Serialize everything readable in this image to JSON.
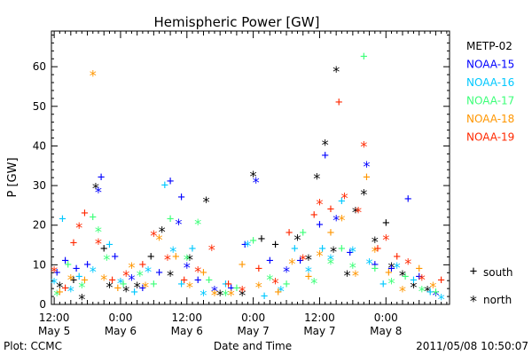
{
  "chart_data": {
    "type": "scatter",
    "title": "Hemispheric Power [GW]",
    "xlabel": "Date and Time",
    "ylabel": "P [GW]",
    "ylim": [
      0,
      69
    ],
    "xlim": [
      -0.5,
      71.5
    ],
    "y_ticks": [
      0,
      10,
      20,
      30,
      40,
      50,
      60
    ],
    "x_tick_labels": [
      {
        "x": 0,
        "time": "12:00",
        "date": "May 5"
      },
      {
        "x": 12,
        "time": "0:00",
        "date": "May 6"
      },
      {
        "x": 24,
        "time": "12:00",
        "date": "May 6"
      },
      {
        "x": 36,
        "time": "0:00",
        "date": "May 7"
      },
      {
        "x": 48,
        "time": "12:00",
        "date": "May 7"
      },
      {
        "x": 60,
        "time": "0:00",
        "date": "May 8"
      }
    ],
    "x_units_note": "hours after 2011-05-05 12:00 UT",
    "grid": false,
    "legend_position": "right",
    "marker_legend": {
      "south": "south",
      "north": "north"
    },
    "series": [
      {
        "name": "METP-02",
        "color": "#000000",
        "points": [
          [
            1,
            5,
            "n"
          ],
          [
            3.5,
            6,
            "s"
          ],
          [
            5,
            2,
            "n"
          ],
          [
            7.5,
            30,
            "n"
          ],
          [
            9,
            14,
            "s"
          ],
          [
            10,
            5,
            "n"
          ],
          [
            13,
            4,
            "n"
          ],
          [
            15,
            5,
            "n"
          ],
          [
            17.5,
            12,
            "s"
          ],
          [
            19.5,
            19,
            "n"
          ],
          [
            21,
            8,
            "n"
          ],
          [
            24.5,
            12,
            "n"
          ],
          [
            27.5,
            26.5,
            "n"
          ],
          [
            30,
            3,
            "n"
          ],
          [
            34,
            3,
            "n"
          ],
          [
            36,
            33,
            "n"
          ],
          [
            37.5,
            16.5,
            "s"
          ],
          [
            40,
            15,
            "s"
          ],
          [
            44,
            17,
            "n"
          ],
          [
            46,
            12,
            "n"
          ],
          [
            47.5,
            32.5,
            "n"
          ],
          [
            49,
            41,
            "n"
          ],
          [
            50.5,
            14,
            "n"
          ],
          [
            51,
            59.5,
            "n"
          ],
          [
            53,
            8,
            "n"
          ],
          [
            54.5,
            24,
            "n"
          ],
          [
            56,
            28.5,
            "n"
          ],
          [
            58,
            16.5,
            "n"
          ],
          [
            60,
            20.5,
            "s"
          ],
          [
            61,
            10,
            "n"
          ],
          [
            63,
            8,
            "n"
          ],
          [
            65,
            5,
            "n"
          ],
          [
            67.5,
            4,
            "n"
          ]
        ]
      },
      {
        "name": "NOAA-15",
        "color": "#0000ff",
        "points": [
          [
            0.5,
            8,
            "s"
          ],
          [
            2,
            11,
            "s"
          ],
          [
            4,
            9,
            "s"
          ],
          [
            6,
            10,
            "s"
          ],
          [
            8,
            29,
            "n"
          ],
          [
            8.5,
            32,
            "s"
          ],
          [
            11,
            12,
            "s"
          ],
          [
            14,
            7,
            "n"
          ],
          [
            16,
            4,
            "s"
          ],
          [
            19,
            8,
            "s"
          ],
          [
            21,
            31,
            "s"
          ],
          [
            22.5,
            21,
            "n"
          ],
          [
            23,
            27,
            "s"
          ],
          [
            24,
            10,
            "n"
          ],
          [
            26,
            6,
            "s"
          ],
          [
            29,
            4,
            "n"
          ],
          [
            32,
            4,
            "s"
          ],
          [
            34.5,
            15,
            "s"
          ],
          [
            36.5,
            31.5,
            "n"
          ],
          [
            39,
            11,
            "s"
          ],
          [
            42,
            9,
            "n"
          ],
          [
            44.5,
            11,
            "s"
          ],
          [
            48,
            20,
            "s"
          ],
          [
            49,
            37.5,
            "s"
          ],
          [
            51,
            22,
            "n"
          ],
          [
            53.5,
            13,
            "s"
          ],
          [
            56.5,
            35.5,
            "n"
          ],
          [
            58,
            10,
            "s"
          ],
          [
            61,
            9,
            "s"
          ],
          [
            64,
            26.5,
            "s"
          ],
          [
            66,
            7,
            "s"
          ],
          [
            69,
            3,
            "n"
          ]
        ]
      },
      {
        "name": "NOAA-16",
        "color": "#00c8ff",
        "points": [
          [
            0,
            6,
            "n"
          ],
          [
            1.5,
            21.5,
            "s"
          ],
          [
            3,
            4,
            "n"
          ],
          [
            4.5,
            7,
            "s"
          ],
          [
            7,
            9,
            "n"
          ],
          [
            10,
            15,
            "s"
          ],
          [
            12,
            6,
            "n"
          ],
          [
            14.5,
            3,
            "s"
          ],
          [
            17,
            9,
            "n"
          ],
          [
            20,
            30,
            "s"
          ],
          [
            21.5,
            14,
            "n"
          ],
          [
            23,
            5,
            "s"
          ],
          [
            25,
            14,
            "s"
          ],
          [
            27,
            3,
            "n"
          ],
          [
            31,
            5,
            "s"
          ],
          [
            35,
            15.5,
            "n"
          ],
          [
            38,
            2,
            "s"
          ],
          [
            41,
            4,
            "n"
          ],
          [
            43.5,
            14,
            "s"
          ],
          [
            46,
            9,
            "n"
          ],
          [
            48.5,
            14,
            "s"
          ],
          [
            50,
            12,
            "n"
          ],
          [
            52,
            26,
            "s"
          ],
          [
            54,
            14,
            "n"
          ],
          [
            57,
            11,
            "n"
          ],
          [
            59.5,
            5,
            "s"
          ],
          [
            62,
            10,
            "n"
          ],
          [
            65,
            6,
            "s"
          ],
          [
            68,
            3,
            "s"
          ],
          [
            70,
            2,
            "n"
          ]
        ]
      },
      {
        "name": "NOAA-17",
        "color": "#3cff78",
        "points": [
          [
            0.5,
            3,
            "n"
          ],
          [
            2.5,
            10,
            "s"
          ],
          [
            5,
            5,
            "n"
          ],
          [
            7,
            22,
            "s"
          ],
          [
            8,
            19,
            "n"
          ],
          [
            9.5,
            12,
            "n"
          ],
          [
            12.5,
            5,
            "s"
          ],
          [
            15.5,
            8,
            "n"
          ],
          [
            18,
            5,
            "s"
          ],
          [
            21,
            21.5,
            "s"
          ],
          [
            24,
            12,
            "n"
          ],
          [
            26,
            21,
            "n"
          ],
          [
            28,
            6,
            "s"
          ],
          [
            31,
            3,
            "n"
          ],
          [
            33,
            4,
            "s"
          ],
          [
            36,
            16,
            "s"
          ],
          [
            39,
            7,
            "n"
          ],
          [
            42,
            5,
            "s"
          ],
          [
            45,
            18,
            "s"
          ],
          [
            47,
            6,
            "n"
          ],
          [
            50,
            11,
            "n"
          ],
          [
            52,
            14,
            "s"
          ],
          [
            54,
            10,
            "n"
          ],
          [
            56,
            62.5,
            "s"
          ],
          [
            58,
            9,
            "s"
          ],
          [
            61,
            6,
            "n"
          ],
          [
            63.5,
            7,
            "s"
          ],
          [
            66.5,
            4,
            "n"
          ],
          [
            69,
            3,
            "s"
          ]
        ]
      },
      {
        "name": "NOAA-18",
        "color": "#ff9600",
        "points": [
          [
            1,
            3,
            "s"
          ],
          [
            3,
            7,
            "n"
          ],
          [
            5.5,
            6,
            "s"
          ],
          [
            7,
            58.5,
            "n"
          ],
          [
            9,
            7,
            "n"
          ],
          [
            11.5,
            4,
            "s"
          ],
          [
            14,
            10,
            "n"
          ],
          [
            16.5,
            5,
            "n"
          ],
          [
            19,
            17,
            "n"
          ],
          [
            22,
            12,
            "s"
          ],
          [
            24.5,
            5,
            "n"
          ],
          [
            27,
            8,
            "s"
          ],
          [
            29,
            3,
            "n"
          ],
          [
            32,
            3,
            "n"
          ],
          [
            34,
            10,
            "s"
          ],
          [
            37,
            5,
            "n"
          ],
          [
            40.5,
            3,
            "s"
          ],
          [
            43,
            11,
            "n"
          ],
          [
            46,
            7,
            "s"
          ],
          [
            48,
            13,
            "n"
          ],
          [
            50,
            18,
            "s"
          ],
          [
            52,
            22,
            "n"
          ],
          [
            54.5,
            8,
            "n"
          ],
          [
            56.5,
            32,
            "s"
          ],
          [
            58,
            14,
            "n"
          ],
          [
            60.5,
            8,
            "s"
          ],
          [
            63,
            4,
            "n"
          ],
          [
            66,
            9,
            "s"
          ],
          [
            68.5,
            5,
            "n"
          ]
        ]
      },
      {
        "name": "NOAA-19",
        "color": "#ff2800",
        "points": [
          [
            0,
            9,
            "n"
          ],
          [
            2,
            4,
            "s"
          ],
          [
            3.5,
            15.5,
            "s"
          ],
          [
            4.5,
            20,
            "n"
          ],
          [
            5.5,
            23,
            "s"
          ],
          [
            8,
            16,
            "n"
          ],
          [
            10.5,
            6,
            "s"
          ],
          [
            13,
            8,
            "n"
          ],
          [
            16,
            10,
            "s"
          ],
          [
            18,
            18,
            "n"
          ],
          [
            20.5,
            12,
            "n"
          ],
          [
            23.5,
            6,
            "s"
          ],
          [
            26,
            9,
            "n"
          ],
          [
            28.5,
            14.5,
            "n"
          ],
          [
            31.5,
            5,
            "s"
          ],
          [
            34,
            4,
            "n"
          ],
          [
            37,
            9,
            "s"
          ],
          [
            40,
            6,
            "n"
          ],
          [
            42.5,
            18,
            "s"
          ],
          [
            45,
            12,
            "n"
          ],
          [
            47,
            22.5,
            "s"
          ],
          [
            48,
            26,
            "n"
          ],
          [
            50,
            24,
            "s"
          ],
          [
            51.5,
            51,
            "s"
          ],
          [
            52.5,
            27.5,
            "n"
          ],
          [
            55,
            24,
            "n"
          ],
          [
            56,
            40.5,
            "n"
          ],
          [
            58.5,
            14,
            "s"
          ],
          [
            60,
            17,
            "n"
          ],
          [
            62,
            12,
            "s"
          ],
          [
            64,
            11,
            "n"
          ],
          [
            66.5,
            7,
            "n"
          ],
          [
            70,
            6,
            "s"
          ]
        ]
      }
    ]
  },
  "footer": {
    "plot_credit": "Plot: CCMC",
    "timestamp": "2011/05/08 10:50:07"
  }
}
